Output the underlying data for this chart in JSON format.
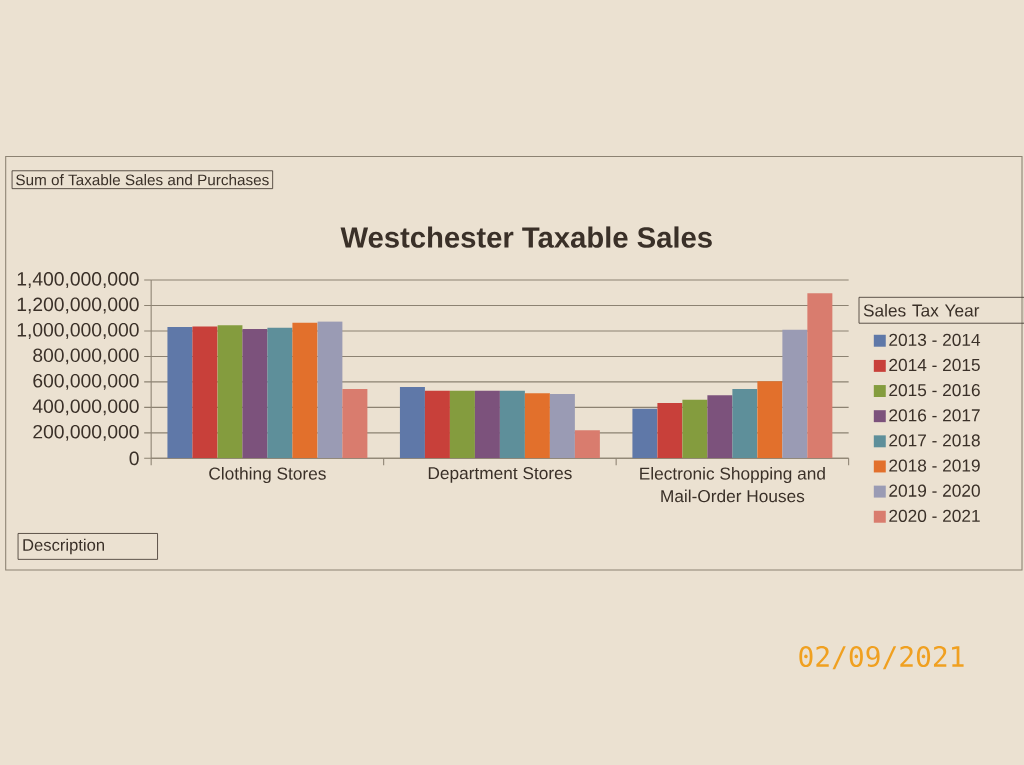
{
  "chart_data": {
    "type": "bar",
    "title": "Westchester Taxable Sales",
    "categories": [
      "Clothing Stores",
      "Department Stores",
      "Electronic Shopping and Mail-Order Houses"
    ],
    "legend_title": "Sales Tax Year",
    "series": [
      {
        "name": "2013 - 2014",
        "color": "#5f78a8",
        "values": [
          1030000000,
          560000000,
          390000000
        ]
      },
      {
        "name": "2014 - 2015",
        "color": "#c8403a",
        "values": [
          1035000000,
          530000000,
          435000000
        ]
      },
      {
        "name": "2015 - 2016",
        "color": "#849c3e",
        "values": [
          1045000000,
          530000000,
          460000000
        ]
      },
      {
        "name": "2016 - 2017",
        "color": "#7c527c",
        "values": [
          1015000000,
          530000000,
          495000000
        ]
      },
      {
        "name": "2017 - 2018",
        "color": "#5e8f9a",
        "values": [
          1025000000,
          530000000,
          545000000
        ]
      },
      {
        "name": "2018 - 2019",
        "color": "#e2702c",
        "values": [
          1065000000,
          510000000,
          605000000
        ]
      },
      {
        "name": "2019 - 2020",
        "color": "#9a9bb4",
        "values": [
          1075000000,
          505000000,
          1010000000
        ]
      },
      {
        "name": "2020 - 2021",
        "color": "#d97c6e",
        "values": [
          545000000,
          220000000,
          1295000000
        ]
      }
    ],
    "ylim": [
      0,
      1400000000
    ],
    "yticks": [
      0,
      {
        "value": 200000000,
        "label": "200,000,000"
      },
      {
        "value": 400000000,
        "label": "400,000,000"
      },
      {
        "value": 600000000,
        "label": "600,000,000"
      },
      {
        "value": 800000000,
        "label": "800,000,000"
      },
      {
        "value": 1000000000,
        "label": "1,000,000,000"
      },
      {
        "value": 1200000000,
        "label": "1,200,000,000"
      },
      {
        "value": 1400000000,
        "label": "1,400,000,000"
      }
    ],
    "grid": "y",
    "legend": "right",
    "annotations": [
      "Sum of Taxable Sales and Purchases",
      "Description",
      "02/09/2021"
    ]
  }
}
